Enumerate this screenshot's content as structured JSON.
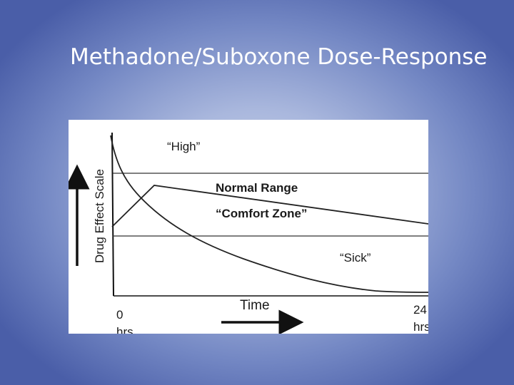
{
  "slide": {
    "title": "Methadone/Suboxone Dose-Response"
  },
  "diagram": {
    "y_axis_label": "Drug Effect Scale",
    "x_axis_label": "Time",
    "x_start_value": "0",
    "x_start_unit": "hrs",
    "x_end_value": "24",
    "x_end_unit": "hrs",
    "zone_high": "“High”",
    "zone_normal": "Normal Range",
    "zone_comfort": "“Comfort Zone”",
    "zone_sick": "“Sick”"
  }
}
